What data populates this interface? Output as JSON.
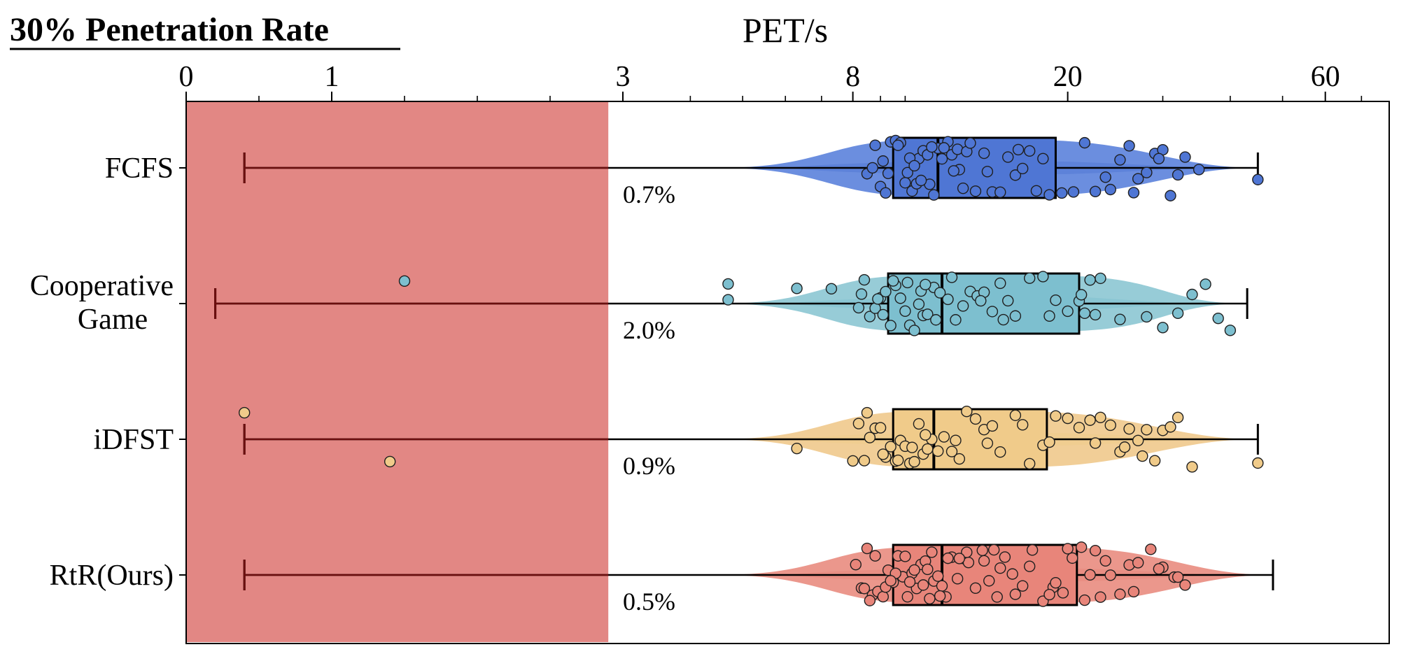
{
  "page_title": "30% Penetration Rate",
  "chart_data": {
    "type": "box-violin-strip",
    "orientation": "horizontal",
    "title": "30% Penetration Rate",
    "xlabel": "PET/s",
    "x_scale": "piecewise: linear 0-3, log 3-100",
    "xticks": [
      0,
      1,
      3,
      8,
      20,
      60
    ],
    "xtick_labels": [
      "0",
      "1",
      "3",
      "8",
      "20",
      "60"
    ],
    "xlim": [
      0,
      100
    ],
    "shaded_region": {
      "x_from": 0,
      "x_to": 2.9,
      "color": "#e28784"
    },
    "categories": [
      "FCFS",
      "Cooperative\nGame",
      "iDFST",
      "RtR(Ours)"
    ],
    "grid": false,
    "legend": "none",
    "series": [
      {
        "name": "FCFS",
        "color": "#4f76d4",
        "violin_color": "#5b82db",
        "percent_label": "0.7%",
        "whisker_low": 0.4,
        "whisker_high": 45,
        "q1": 9.5,
        "median": 11.5,
        "q3": 19,
        "points": [
          8.8,
          9.0,
          9.2,
          9.4,
          9.6,
          9.8,
          10.0,
          10.1,
          10.3,
          10.5,
          10.6,
          10.8,
          11.0,
          11.1,
          11.3,
          11.5,
          11.7,
          12.0,
          12.2,
          12.5,
          12.8,
          13.0,
          13.5,
          14.0,
          14.5,
          15.0,
          15.5,
          16.0,
          16.5,
          17.0,
          17.5,
          18.0,
          18.5,
          19.5,
          20.5,
          21.5,
          22.5,
          24.0,
          25.0,
          26.0,
          27.0,
          28.0,
          29.0,
          30.0,
          31.0,
          33.0,
          35.0,
          45.0,
          8.5,
          8.7,
          9.1,
          9.3,
          10.2,
          10.7,
          11.2,
          12.6,
          13.2,
          14.2,
          16.2,
          23.5,
          26.5,
          29.5,
          32.0,
          10.4,
          9.7,
          11.8,
          12.3
        ]
      },
      {
        "name": "Cooperative Game",
        "color": "#7dbfcf",
        "violin_color": "#8cc6d3",
        "percent_label": "2.0%",
        "whisker_low": 0.2,
        "whisker_high": 43,
        "q1": 9.3,
        "median": 11.7,
        "q3": 21,
        "points": [
          1.5,
          4.7,
          4.7,
          6.3,
          7.3,
          8.2,
          8.4,
          8.6,
          8.8,
          9.0,
          9.2,
          9.4,
          9.6,
          9.8,
          10.0,
          10.2,
          10.4,
          10.6,
          10.8,
          11.0,
          11.3,
          11.6,
          12.0,
          12.4,
          12.8,
          13.2,
          13.6,
          14.0,
          14.5,
          15.0,
          15.5,
          16.0,
          17.0,
          18.0,
          19.0,
          20.0,
          21.0,
          21.5,
          22.0,
          22.5,
          23.0,
          25.0,
          28.0,
          30.0,
          32.0,
          34.0,
          36.0,
          38.0,
          40.0,
          8.3,
          8.9,
          9.5,
          10.1,
          10.7,
          11.4,
          12.2,
          13.8,
          15.2,
          18.5,
          21.2,
          9.1,
          10.9
        ]
      },
      {
        "name": "iDFST",
        "color": "#f0cb8a",
        "violin_color": "#f0c98c",
        "percent_label": "0.9%",
        "whisker_low": 0.4,
        "whisker_high": 45,
        "q1": 9.5,
        "median": 11.3,
        "q3": 18.3,
        "points": [
          0.4,
          1.4,
          6.3,
          8.0,
          8.2,
          8.4,
          8.6,
          8.8,
          9.0,
          9.2,
          9.4,
          9.6,
          9.8,
          10.0,
          10.2,
          10.4,
          10.6,
          10.8,
          11.0,
          11.2,
          11.5,
          11.8,
          12.2,
          12.6,
          13.0,
          13.5,
          14.0,
          14.5,
          15.0,
          16.0,
          17.0,
          18.0,
          18.5,
          19.0,
          20.0,
          21.0,
          22.0,
          23.0,
          24.0,
          25.0,
          26.0,
          27.0,
          28.0,
          29.0,
          30.0,
          31.0,
          32.0,
          34.0,
          45.0,
          8.5,
          9.1,
          9.7,
          10.3,
          10.9,
          12.4,
          14.2,
          16.5,
          22.5,
          25.5,
          27.5
        ]
      },
      {
        "name": "RtR(Ours)",
        "color": "#e8857a",
        "violin_color": "#e98c80",
        "percent_label": "0.5%",
        "whisker_low": 0.4,
        "whisker_high": 48,
        "q1": 9.5,
        "median": 11.7,
        "q3": 20.8,
        "points": [
          8.1,
          8.3,
          8.5,
          8.7,
          8.9,
          9.1,
          9.3,
          9.5,
          9.7,
          9.9,
          10.1,
          10.3,
          10.5,
          10.7,
          10.9,
          11.1,
          11.3,
          11.5,
          11.7,
          11.9,
          12.2,
          12.5,
          12.8,
          13.1,
          13.5,
          13.9,
          14.3,
          14.8,
          15.3,
          15.8,
          16.5,
          17.2,
          18.0,
          18.8,
          19.6,
          20.4,
          21.2,
          22.0,
          23.0,
          24.0,
          25.0,
          26.0,
          27.0,
          28.5,
          30.0,
          31.5,
          33.0,
          8.4,
          8.8,
          9.2,
          9.6,
          10.0,
          10.4,
          10.8,
          11.2,
          11.6,
          12.0,
          13.0,
          14.0,
          15.0,
          16.0,
          17.0,
          18.5,
          20.0,
          21.5,
          23.5,
          26.5,
          29.5,
          32.0,
          8.6,
          9.4,
          10.2,
          11.0,
          12.6,
          14.6,
          19.0,
          22.5
        ]
      }
    ]
  }
}
